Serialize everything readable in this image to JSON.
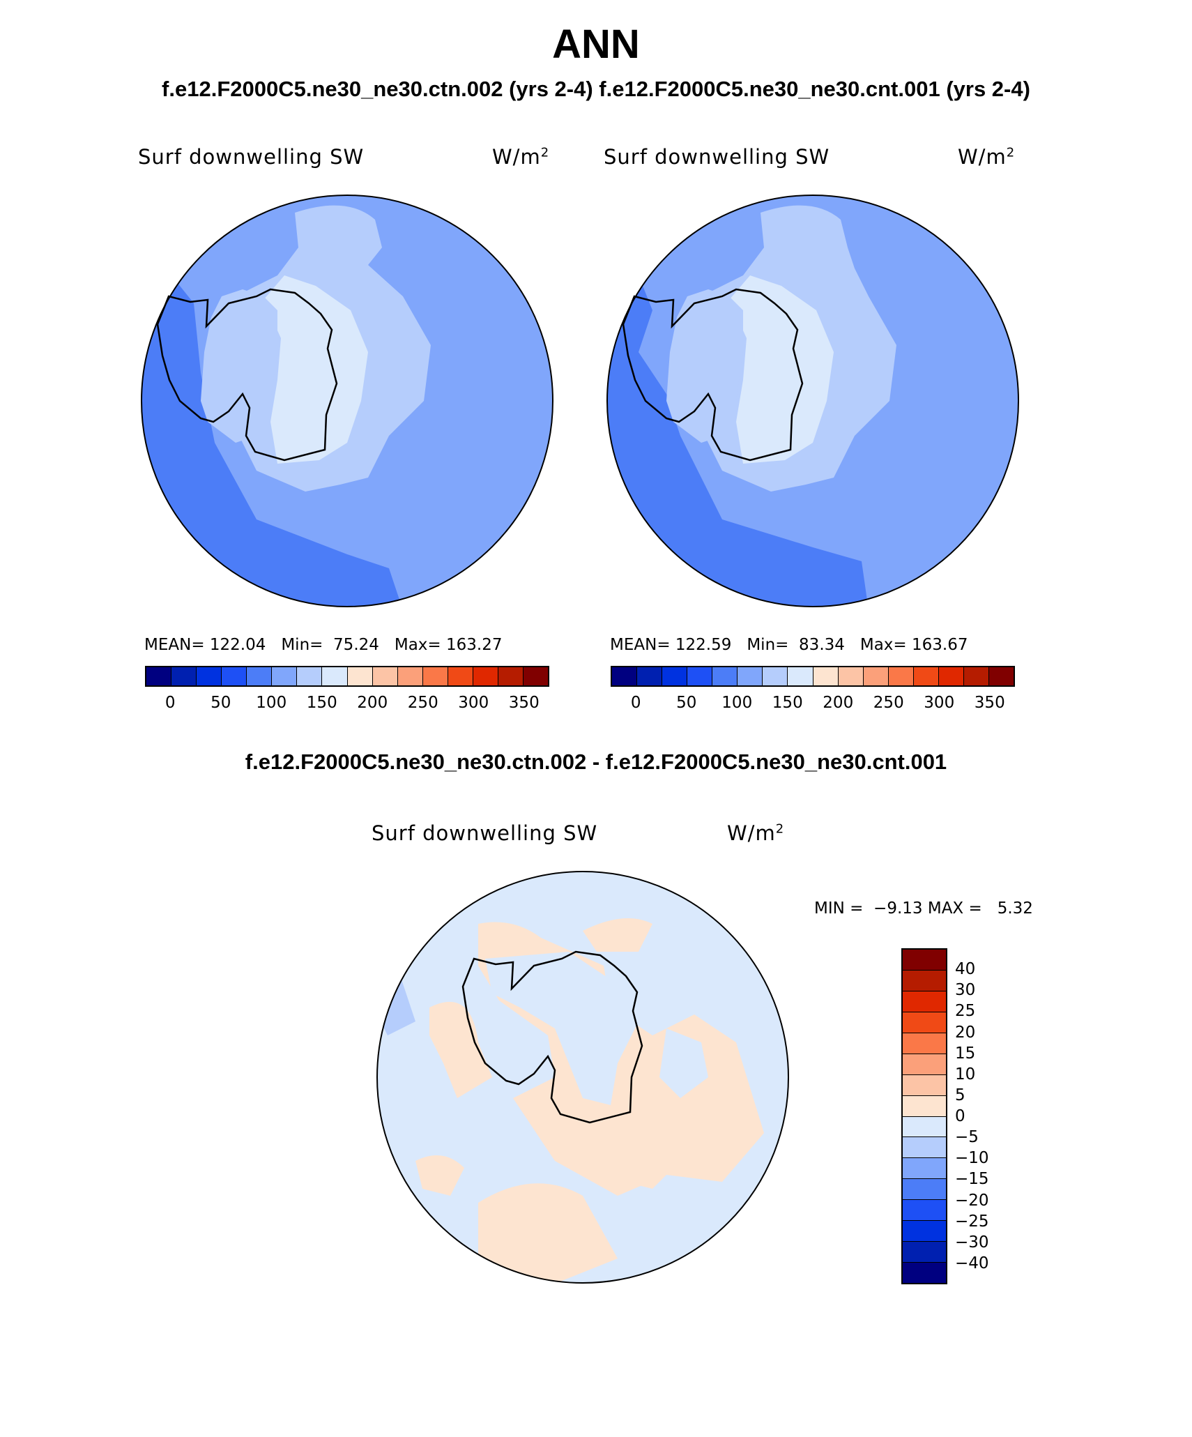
{
  "figure": {
    "title": "ANN",
    "case_line": "f.e12.F2000C5.ne30_ne30.ctn.002 (yrs 2-4) f.e12.F2000C5.ne30_ne30.cnt.001 (yrs 2-4)",
    "diff_title": "f.e12.F2000C5.ne30_ne30.ctn.002 - f.e12.F2000C5.ne30_ne30.cnt.001"
  },
  "panels": [
    {
      "variable": "Surf downwelling SW",
      "units": "W/m",
      "units_sup": "2",
      "mean_label": "MEAN=",
      "mean": "122.04",
      "min_label": "Min=",
      "min": "75.24",
      "max_label": "Max=",
      "max": "163.27",
      "colorbar_ticks": [
        "0",
        "50",
        "100",
        "150",
        "200",
        "250",
        "300",
        "350"
      ]
    },
    {
      "variable": "Surf downwelling SW",
      "units": "W/m",
      "units_sup": "2",
      "mean_label": "MEAN=",
      "mean": "122.59",
      "min_label": "Min=",
      "min": "83.34",
      "max_label": "Max=",
      "max": "163.67",
      "colorbar_ticks": [
        "0",
        "50",
        "100",
        "150",
        "200",
        "250",
        "300",
        "350"
      ]
    }
  ],
  "diff_panel": {
    "variable": "Surf downwelling SW",
    "units": "W/m",
    "units_sup": "2",
    "min_label": "MIN =",
    "min": "−9.13",
    "max_label": "MAX =",
    "max": "5.32",
    "colorbar_ticks": [
      "40",
      "30",
      "25",
      "20",
      "15",
      "10",
      "5",
      "0",
      "−5",
      "−10",
      "−15",
      "−20",
      "−25",
      "−30",
      "−40"
    ]
  },
  "colors": {
    "abs_scale": [
      "#000080",
      "#0020b0",
      "#0032e0",
      "#1e50f5",
      "#4c7df7",
      "#80a6fb",
      "#b5cdfc",
      "#dae9fc",
      "#fde4d0",
      "#fcc4a6",
      "#fba07a",
      "#fa7848",
      "#f04a16",
      "#e02800",
      "#b51c00",
      "#800000"
    ],
    "diff_scale": [
      "#800000",
      "#b51c00",
      "#e02800",
      "#f04a16",
      "#fa7848",
      "#fba07a",
      "#fcc4a6",
      "#fde4d0",
      "#dae9fc",
      "#b5cdfc",
      "#80a6fb",
      "#4c7df7",
      "#1e50f5",
      "#0032e0",
      "#0020b0",
      "#000080"
    ]
  }
}
